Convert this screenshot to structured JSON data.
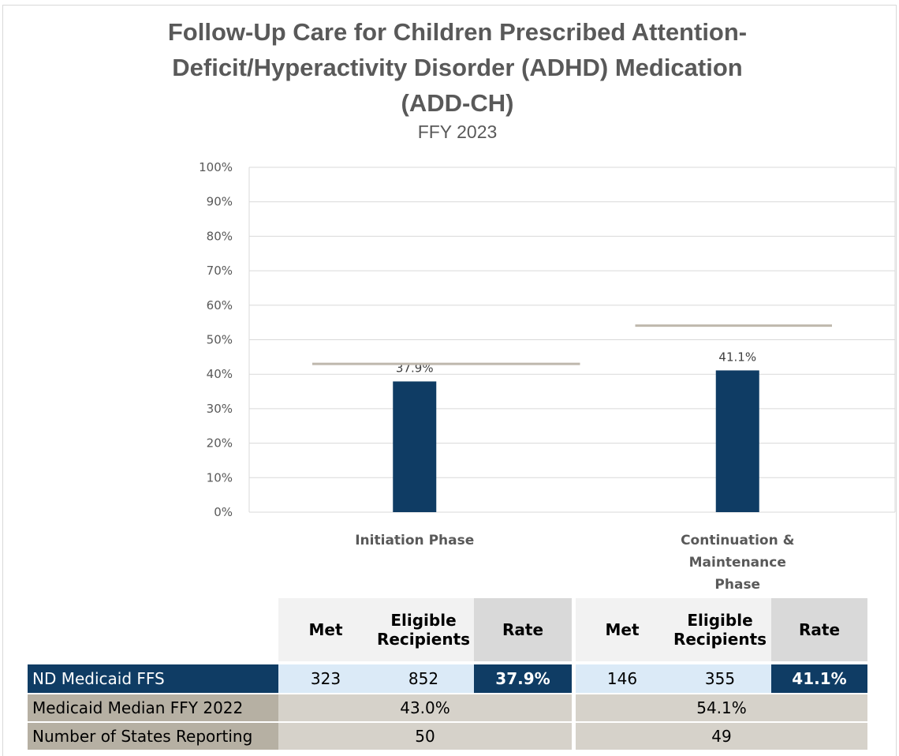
{
  "header": {
    "title_lines": [
      "Follow-Up Care for Children Prescribed Attention-",
      "Deficit/Hyperactivity Disorder (ADHD) Medication",
      "(ADD-CH)"
    ],
    "subtitle": "FFY 2023"
  },
  "chart_data": {
    "type": "bar",
    "title": "Follow-Up Care for Children Prescribed Attention-Deficit/Hyperactivity Disorder (ADHD) Medication (ADD-CH)",
    "subtitle": "FFY 2023",
    "categories": [
      [
        "Initiation Phase"
      ],
      [
        "Continuation &",
        "Maintenance",
        "Phase"
      ]
    ],
    "series": [
      {
        "values": [
          37.9,
          41.1
        ],
        "labels": [
          "37.9%",
          "41.1%"
        ],
        "color": "#0f3c64"
      }
    ],
    "reference_lines": {
      "values": [
        43.0,
        54.1
      ],
      "color": "#bfb8ad"
    },
    "y_ticks": [
      "0%",
      "10%",
      "20%",
      "30%",
      "40%",
      "50%",
      "60%",
      "70%",
      "80%",
      "90%",
      "100%"
    ],
    "ylim": [
      0,
      100
    ],
    "grid": true,
    "legend": "none"
  },
  "table": {
    "headers": {
      "met": "Met",
      "eligible_1": "Eligible",
      "eligible_2": "Recipients",
      "rate": "Rate"
    },
    "rows": {
      "nd": {
        "label": "ND Medicaid FFS",
        "init_met": "323",
        "init_eligible": "852",
        "init_rate": "37.9%",
        "cont_met": "146",
        "cont_eligible": "355",
        "cont_rate": "41.1%"
      },
      "median": {
        "label": "Medicaid Median FFY 2022",
        "init": "43.0%",
        "cont": "54.1%"
      },
      "states": {
        "label": "Number of States Reporting",
        "init": "50",
        "cont": "49"
      }
    }
  },
  "colors": {
    "bar": "#0f3c64",
    "median_line": "#bfb8ad",
    "grid": "#d9d9d9",
    "text": "#595959"
  }
}
